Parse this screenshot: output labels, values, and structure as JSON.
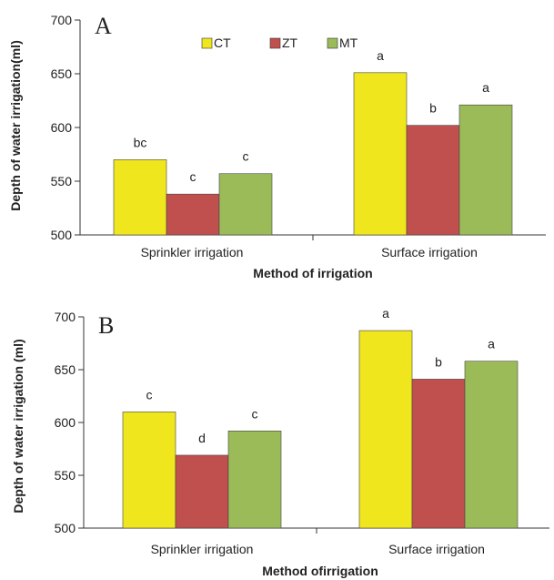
{
  "colors": {
    "CT": "#f0e61e",
    "ZT": "#c0504d",
    "MT": "#9bbb59"
  },
  "chart_data": [
    {
      "type": "bar",
      "panel": "A",
      "categories": [
        "Sprinkler irrigation",
        "Surface irrigation"
      ],
      "series": [
        {
          "name": "CT",
          "values": [
            570,
            651
          ],
          "labels": [
            "bc",
            "a"
          ]
        },
        {
          "name": "ZT",
          "values": [
            538,
            602
          ],
          "labels": [
            "c",
            "b"
          ]
        },
        {
          "name": "MT",
          "values": [
            557,
            621
          ],
          "labels": [
            "c",
            "a"
          ]
        }
      ],
      "ylabel": "Depth of water irrigation(ml)",
      "xlabel": "Method of irrigation",
      "ylim": [
        500,
        700
      ],
      "yticks": [
        "500",
        "550",
        "600",
        "650",
        "700"
      ],
      "legend": "top-center",
      "grid": false
    },
    {
      "type": "bar",
      "panel": "B",
      "categories": [
        "Sprinkler irrigation",
        "Surface irrigation"
      ],
      "series": [
        {
          "name": "CT",
          "values": [
            610,
            687
          ],
          "labels": [
            "c",
            "a"
          ]
        },
        {
          "name": "ZT",
          "values": [
            569,
            641
          ],
          "labels": [
            "d",
            "b"
          ]
        },
        {
          "name": "MT",
          "values": [
            592,
            658
          ],
          "labels": [
            "c",
            "a"
          ]
        }
      ],
      "ylabel": "Depth of water irrigation (ml)",
      "xlabel": "Method ofirrigation",
      "ylim": [
        500,
        700
      ],
      "yticks": [
        "500",
        "550",
        "600",
        "650",
        "700"
      ],
      "grid": false
    }
  ]
}
